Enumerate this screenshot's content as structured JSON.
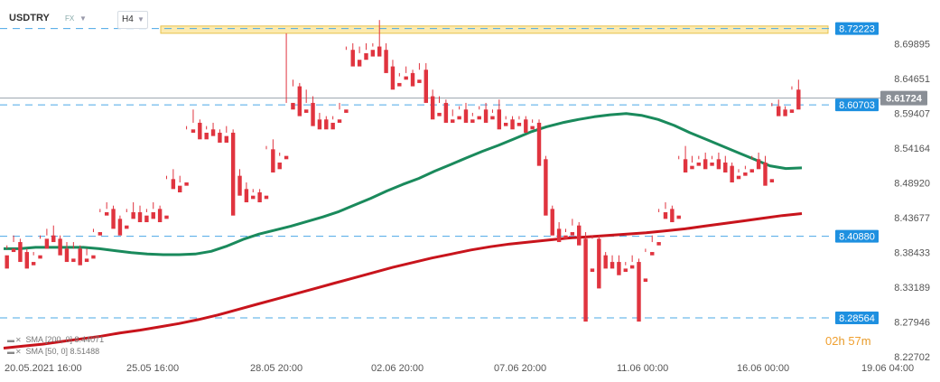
{
  "header": {
    "symbol": "USDTRY",
    "market": "FX",
    "timeframe": "H4"
  },
  "legend": {
    "sma200": "SMA [200, 0] 8.44071",
    "sma50": "SMA [50, 0] 8.51488"
  },
  "countdown": {
    "hours": "02",
    "h_unit": "h",
    "minutes": "57",
    "m_unit": "m"
  },
  "colors": {
    "bull": "#1f9e6a",
    "bear": "#e0343f",
    "sma50": "#1a8a5c",
    "sma200": "#c8141c",
    "level_label": "#1e90e0",
    "current_label": "#8a8f96",
    "zone_fill": "#fbe59a",
    "zone_border": "#e6c24e"
  },
  "chart_data": {
    "type": "candlestick",
    "symbol": "USDTRY",
    "timeframe": "H4",
    "ylim": [
      8.227,
      8.738
    ],
    "y_ticks": [
      "8.69895",
      "8.64651",
      "8.59407",
      "8.54164",
      "8.48920",
      "8.43677",
      "8.38433",
      "8.33189",
      "8.27946",
      "8.22702"
    ],
    "x_tick_labels": [
      "20.05.2021  16:00",
      "25.05  16:00",
      "28.05  20:00",
      "02.06  20:00",
      "07.06  20:00",
      "11.06  00:00",
      "16.06  00:00",
      "19.06  04:00"
    ],
    "levels": [
      {
        "label": "8.72223",
        "value": 8.72223,
        "style": "dashed"
      },
      {
        "label": "8.60703",
        "value": 8.60703,
        "style": "dashed"
      },
      {
        "label": "8.40880",
        "value": 8.4088,
        "style": "dashed"
      },
      {
        "label": "8.28564",
        "value": 8.28564,
        "style": "dashed"
      }
    ],
    "current_price": {
      "label": "8.61724",
      "value": 8.61724
    },
    "resistance_zone": [
      8.715,
      8.726
    ],
    "candles": [
      [
        8.38,
        8.395,
        8.39,
        8.36
      ],
      [
        8.39,
        8.41,
        8.4,
        8.385
      ],
      [
        8.4,
        8.405,
        8.385,
        8.37
      ],
      [
        8.385,
        8.39,
        8.37,
        8.36
      ],
      [
        8.37,
        8.385,
        8.38,
        8.365
      ],
      [
        8.38,
        8.41,
        8.405,
        8.375
      ],
      [
        8.405,
        8.42,
        8.41,
        8.39
      ],
      [
        8.41,
        8.425,
        8.405,
        8.4
      ],
      [
        8.405,
        8.41,
        8.39,
        8.38
      ],
      [
        8.39,
        8.4,
        8.375,
        8.37
      ],
      [
        8.375,
        8.4,
        8.39,
        8.37
      ],
      [
        8.39,
        8.395,
        8.375,
        8.365
      ],
      [
        8.375,
        8.39,
        8.38,
        8.37
      ],
      [
        8.38,
        8.42,
        8.415,
        8.375
      ],
      [
        8.415,
        8.45,
        8.445,
        8.41
      ],
      [
        8.445,
        8.46,
        8.45,
        8.44
      ],
      [
        8.45,
        8.455,
        8.435,
        8.42
      ],
      [
        8.435,
        8.44,
        8.425,
        8.41
      ],
      [
        8.425,
        8.45,
        8.445,
        8.42
      ],
      [
        8.445,
        8.46,
        8.445,
        8.435
      ],
      [
        8.445,
        8.455,
        8.44,
        8.43
      ],
      [
        8.44,
        8.45,
        8.445,
        8.43
      ],
      [
        8.445,
        8.46,
        8.45,
        8.435
      ],
      [
        8.45,
        8.455,
        8.44,
        8.43
      ],
      [
        8.44,
        8.5,
        8.495,
        8.435
      ],
      [
        8.495,
        8.51,
        8.485,
        8.48
      ],
      [
        8.485,
        8.5,
        8.49,
        8.475
      ],
      [
        8.49,
        8.575,
        8.57,
        8.485
      ],
      [
        8.57,
        8.6,
        8.58,
        8.565
      ],
      [
        8.58,
        8.585,
        8.565,
        8.555
      ],
      [
        8.565,
        8.575,
        8.57,
        8.555
      ],
      [
        8.57,
        8.58,
        8.565,
        8.56
      ],
      [
        8.565,
        8.57,
        8.56,
        8.55
      ],
      [
        8.56,
        8.575,
        8.565,
        8.55
      ],
      [
        8.565,
        8.57,
        8.5,
        8.44
      ],
      [
        8.5,
        8.51,
        8.48,
        8.47
      ],
      [
        8.48,
        8.49,
        8.47,
        8.46
      ],
      [
        8.47,
        8.48,
        8.475,
        8.465
      ],
      [
        8.475,
        8.48,
        8.47,
        8.46
      ],
      [
        8.47,
        8.545,
        8.54,
        8.465
      ],
      [
        8.54,
        8.555,
        8.52,
        8.505
      ],
      [
        8.52,
        8.535,
        8.53,
        8.51
      ],
      [
        8.53,
        8.715,
        8.61,
        8.525
      ],
      [
        8.61,
        8.645,
        8.635,
        8.6
      ],
      [
        8.635,
        8.64,
        8.6,
        8.59
      ],
      [
        8.6,
        8.63,
        8.61,
        8.595
      ],
      [
        8.61,
        8.62,
        8.585,
        8.575
      ],
      [
        8.585,
        8.595,
        8.585,
        8.57
      ],
      [
        8.585,
        8.59,
        8.58,
        8.57
      ],
      [
        8.58,
        8.59,
        8.585,
        8.57
      ],
      [
        8.585,
        8.61,
        8.6,
        8.58
      ],
      [
        8.6,
        8.695,
        8.69,
        8.595
      ],
      [
        8.69,
        8.7,
        8.675,
        8.665
      ],
      [
        8.675,
        8.695,
        8.685,
        8.665
      ],
      [
        8.685,
        8.7,
        8.69,
        8.675
      ],
      [
        8.69,
        8.7,
        8.695,
        8.68
      ],
      [
        8.695,
        8.735,
        8.69,
        8.68
      ],
      [
        8.69,
        8.7,
        8.665,
        8.655
      ],
      [
        8.665,
        8.675,
        8.64,
        8.63
      ],
      [
        8.64,
        8.655,
        8.65,
        8.635
      ],
      [
        8.65,
        8.665,
        8.655,
        8.645
      ],
      [
        8.655,
        8.66,
        8.645,
        8.635
      ],
      [
        8.645,
        8.67,
        8.66,
        8.64
      ],
      [
        8.66,
        8.67,
        8.62,
        8.61
      ],
      [
        8.62,
        8.63,
        8.595,
        8.585
      ],
      [
        8.595,
        8.62,
        8.61,
        8.59
      ],
      [
        8.61,
        8.615,
        8.585,
        8.58
      ],
      [
        8.585,
        8.6,
        8.59,
        8.58
      ],
      [
        8.59,
        8.605,
        8.6,
        8.585
      ],
      [
        8.6,
        8.61,
        8.585,
        8.58
      ],
      [
        8.585,
        8.595,
        8.59,
        8.58
      ],
      [
        8.59,
        8.605,
        8.6,
        8.585
      ],
      [
        8.6,
        8.61,
        8.59,
        8.58
      ],
      [
        8.59,
        8.595,
        8.6,
        8.585
      ],
      [
        8.6,
        8.615,
        8.58,
        8.57
      ],
      [
        8.58,
        8.59,
        8.585,
        8.575
      ],
      [
        8.585,
        8.59,
        8.58,
        8.57
      ],
      [
        8.58,
        8.59,
        8.585,
        8.575
      ],
      [
        8.585,
        8.59,
        8.575,
        8.565
      ],
      [
        8.575,
        8.585,
        8.58,
        8.57
      ],
      [
        8.58,
        8.585,
        8.525,
        8.515
      ],
      [
        8.525,
        8.53,
        8.45,
        8.44
      ],
      [
        8.45,
        8.455,
        8.42,
        8.41
      ],
      [
        8.42,
        8.43,
        8.41,
        8.4
      ],
      [
        8.41,
        8.42,
        8.415,
        8.405
      ],
      [
        8.415,
        8.435,
        8.425,
        8.41
      ],
      [
        8.425,
        8.43,
        8.405,
        8.395
      ],
      [
        8.405,
        8.415,
        8.36,
        8.28
      ],
      [
        8.36,
        8.41,
        8.405,
        8.355
      ],
      [
        8.405,
        8.41,
        8.38,
        8.33
      ],
      [
        8.38,
        8.385,
        8.37,
        8.36
      ],
      [
        8.37,
        8.38,
        8.37,
        8.36
      ],
      [
        8.37,
        8.38,
        8.36,
        8.35
      ],
      [
        8.36,
        8.37,
        8.365,
        8.355
      ],
      [
        8.365,
        8.38,
        8.37,
        8.36
      ],
      [
        8.37,
        8.375,
        8.345,
        8.28
      ],
      [
        8.345,
        8.39,
        8.385,
        8.34
      ],
      [
        8.385,
        8.41,
        8.4,
        8.38
      ],
      [
        8.4,
        8.45,
        8.445,
        8.395
      ],
      [
        8.445,
        8.46,
        8.45,
        8.435
      ],
      [
        8.45,
        8.455,
        8.44,
        8.43
      ],
      [
        8.44,
        8.53,
        8.525,
        8.435
      ],
      [
        8.525,
        8.545,
        8.515,
        8.505
      ],
      [
        8.515,
        8.53,
        8.52,
        8.51
      ],
      [
        8.52,
        8.53,
        8.525,
        8.515
      ],
      [
        8.525,
        8.535,
        8.52,
        8.51
      ],
      [
        8.52,
        8.53,
        8.525,
        8.515
      ],
      [
        8.525,
        8.535,
        8.52,
        8.51
      ],
      [
        8.52,
        8.53,
        8.515,
        8.505
      ],
      [
        8.515,
        8.52,
        8.5,
        8.49
      ],
      [
        8.5,
        8.51,
        8.505,
        8.495
      ],
      [
        8.505,
        8.515,
        8.51,
        8.5
      ],
      [
        8.51,
        8.53,
        8.525,
        8.505
      ],
      [
        8.525,
        8.535,
        8.52,
        8.51
      ],
      [
        8.52,
        8.53,
        8.495,
        8.485
      ],
      [
        8.495,
        8.61,
        8.605,
        8.49
      ],
      [
        8.605,
        8.615,
        8.6,
        8.59
      ],
      [
        8.6,
        8.605,
        8.6,
        8.59
      ],
      [
        8.6,
        8.635,
        8.63,
        8.595
      ],
      [
        8.63,
        8.645,
        8.615,
        8.6
      ]
    ],
    "sma50": [
      8.39,
      8.39,
      8.392,
      8.392,
      8.392,
      8.392,
      8.39,
      8.387,
      8.384,
      8.382,
      8.381,
      8.381,
      8.382,
      8.386,
      8.394,
      8.404,
      8.412,
      8.418,
      8.424,
      8.431,
      8.438,
      8.446,
      8.456,
      8.466,
      8.477,
      8.487,
      8.496,
      8.507,
      8.517,
      8.527,
      8.537,
      8.546,
      8.556,
      8.566,
      8.574,
      8.58,
      8.585,
      8.589,
      8.592,
      8.594,
      8.591,
      8.585,
      8.576,
      8.565,
      8.555,
      8.545,
      8.535,
      8.525,
      8.515,
      8.511,
      8.512
    ],
    "sma200": [
      8.24,
      8.243,
      8.246,
      8.25,
      8.254,
      8.258,
      8.263,
      8.267,
      8.272,
      8.277,
      8.283,
      8.29,
      8.298,
      8.306,
      8.314,
      8.322,
      8.33,
      8.338,
      8.346,
      8.354,
      8.362,
      8.369,
      8.376,
      8.382,
      8.388,
      8.393,
      8.397,
      8.4,
      8.403,
      8.406,
      8.408,
      8.41,
      8.412,
      8.414,
      8.417,
      8.42,
      8.424,
      8.428,
      8.432,
      8.436,
      8.44,
      8.443
    ]
  }
}
